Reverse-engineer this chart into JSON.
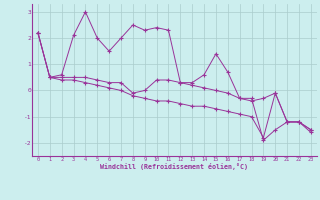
{
  "hours": [
    0,
    1,
    2,
    3,
    4,
    5,
    6,
    7,
    8,
    9,
    10,
    11,
    12,
    13,
    14,
    15,
    16,
    17,
    18,
    19,
    20,
    21,
    22,
    23
  ],
  "line1": [
    2.2,
    0.5,
    0.6,
    2.1,
    3.0,
    2.0,
    1.5,
    2.0,
    2.5,
    2.3,
    2.4,
    2.3,
    0.3,
    0.3,
    0.6,
    1.4,
    0.7,
    -0.3,
    -0.3,
    -1.9,
    -1.5,
    -1.2,
    -1.2,
    -1.6
  ],
  "line2": [
    2.2,
    0.5,
    0.5,
    0.5,
    0.5,
    0.4,
    0.3,
    0.3,
    -0.1,
    0.0,
    0.4,
    0.4,
    0.3,
    0.2,
    0.1,
    0.0,
    -0.1,
    -0.3,
    -0.4,
    -0.3,
    -0.1,
    -1.2,
    -1.2,
    -1.5
  ],
  "line3": [
    2.2,
    0.5,
    0.4,
    0.4,
    0.3,
    0.2,
    0.1,
    0.0,
    -0.2,
    -0.3,
    -0.4,
    -0.4,
    -0.5,
    -0.6,
    -0.6,
    -0.7,
    -0.8,
    -0.9,
    -1.0,
    -1.8,
    -0.1,
    -1.2,
    -1.2,
    -1.5
  ],
  "color": "#993399",
  "bg_color": "#cceeee",
  "grid_color": "#aacccc",
  "xlabel": "Windchill (Refroidissement éolien,°C)",
  "ylim": [
    -2.5,
    3.3
  ],
  "xlim": [
    -0.5,
    23.5
  ],
  "yticks": [
    -2,
    -1,
    0,
    1,
    2,
    3
  ],
  "xticks": [
    0,
    1,
    2,
    3,
    4,
    5,
    6,
    7,
    8,
    9,
    10,
    11,
    12,
    13,
    14,
    15,
    16,
    17,
    18,
    19,
    20,
    21,
    22,
    23
  ]
}
